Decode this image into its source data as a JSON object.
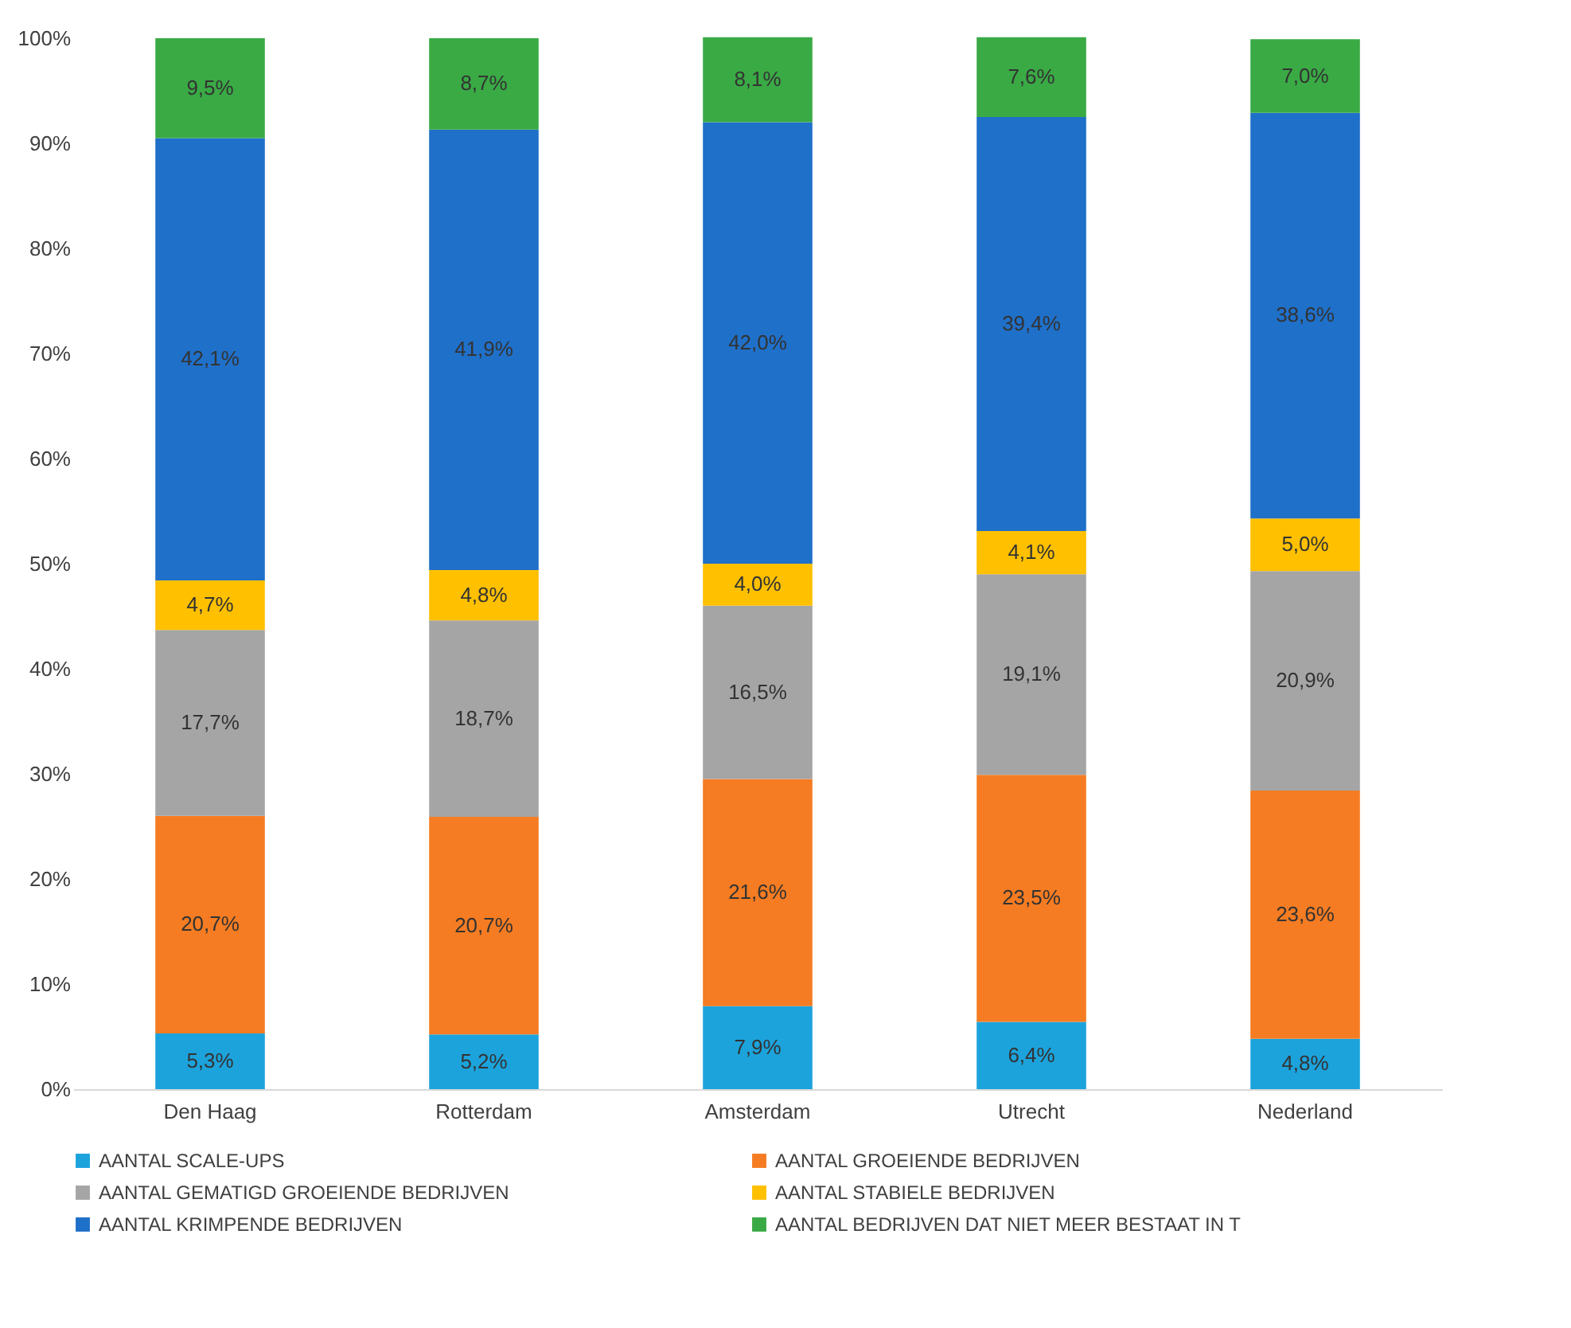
{
  "chart_data": {
    "type": "bar",
    "stacked": true,
    "categories": [
      "Den Haag",
      "Rotterdam",
      "Amsterdam",
      "Utrecht",
      "Nederland"
    ],
    "series": [
      {
        "name": "AANTAL SCALE-UPS",
        "color": "#1ca3dc",
        "values": [
          5.3,
          5.2,
          7.9,
          6.4,
          4.8
        ],
        "value_labels": [
          "5,3%",
          "5,2%",
          "7,9%",
          "6,4%",
          "4,8%"
        ]
      },
      {
        "name": "AANTAL GROEIENDE BEDRIJVEN",
        "color": "#f57c22",
        "values": [
          20.7,
          20.7,
          21.6,
          23.5,
          23.6
        ],
        "value_labels": [
          "20,7%",
          "20,7%",
          "21,6%",
          "23,5%",
          "23,6%"
        ]
      },
      {
        "name": "AANTAL GEMATIGD GROEIENDE BEDRIJVEN",
        "color": "#a5a5a5",
        "values": [
          17.7,
          18.7,
          16.5,
          19.1,
          20.9
        ],
        "value_labels": [
          "17,7%",
          "18,7%",
          "16,5%",
          "19,1%",
          "20,9%"
        ]
      },
      {
        "name": "AANTAL STABIELE BEDRIJVEN",
        "color": "#ffc000",
        "values": [
          4.7,
          4.8,
          4.0,
          4.1,
          5.0
        ],
        "value_labels": [
          "4,7%",
          "4,8%",
          "4,0%",
          "4,1%",
          "5,0%"
        ]
      },
      {
        "name": "AANTAL KRIMPENDE BEDRIJVEN",
        "color": "#1f70c9",
        "values": [
          42.1,
          41.9,
          42.0,
          39.4,
          38.6
        ],
        "value_labels": [
          "42,1%",
          "41,9%",
          "42,0%",
          "39,4%",
          "38,6%"
        ]
      },
      {
        "name": "AANTAL BEDRIJVEN DAT NIET MEER BESTAAT IN T",
        "color": "#3aaa45",
        "values": [
          9.5,
          8.7,
          8.1,
          7.6,
          7.0
        ],
        "value_labels": [
          "9,5%",
          "8,7%",
          "8,1%",
          "7,6%",
          "7,0%"
        ]
      }
    ],
    "ylim": [
      0,
      100
    ],
    "yticks": [
      {
        "value": 0,
        "label": "0%"
      },
      {
        "value": 10,
        "label": "10%"
      },
      {
        "value": 20,
        "label": "20%"
      },
      {
        "value": 30,
        "label": "30%"
      },
      {
        "value": 40,
        "label": "40%"
      },
      {
        "value": 50,
        "label": "50%"
      },
      {
        "value": 60,
        "label": "60%"
      },
      {
        "value": 70,
        "label": "70%"
      },
      {
        "value": 80,
        "label": "80%"
      },
      {
        "value": 90,
        "label": "90%"
      },
      {
        "value": 100,
        "label": "100%"
      }
    ],
    "legend": "bottom",
    "grid": false
  }
}
